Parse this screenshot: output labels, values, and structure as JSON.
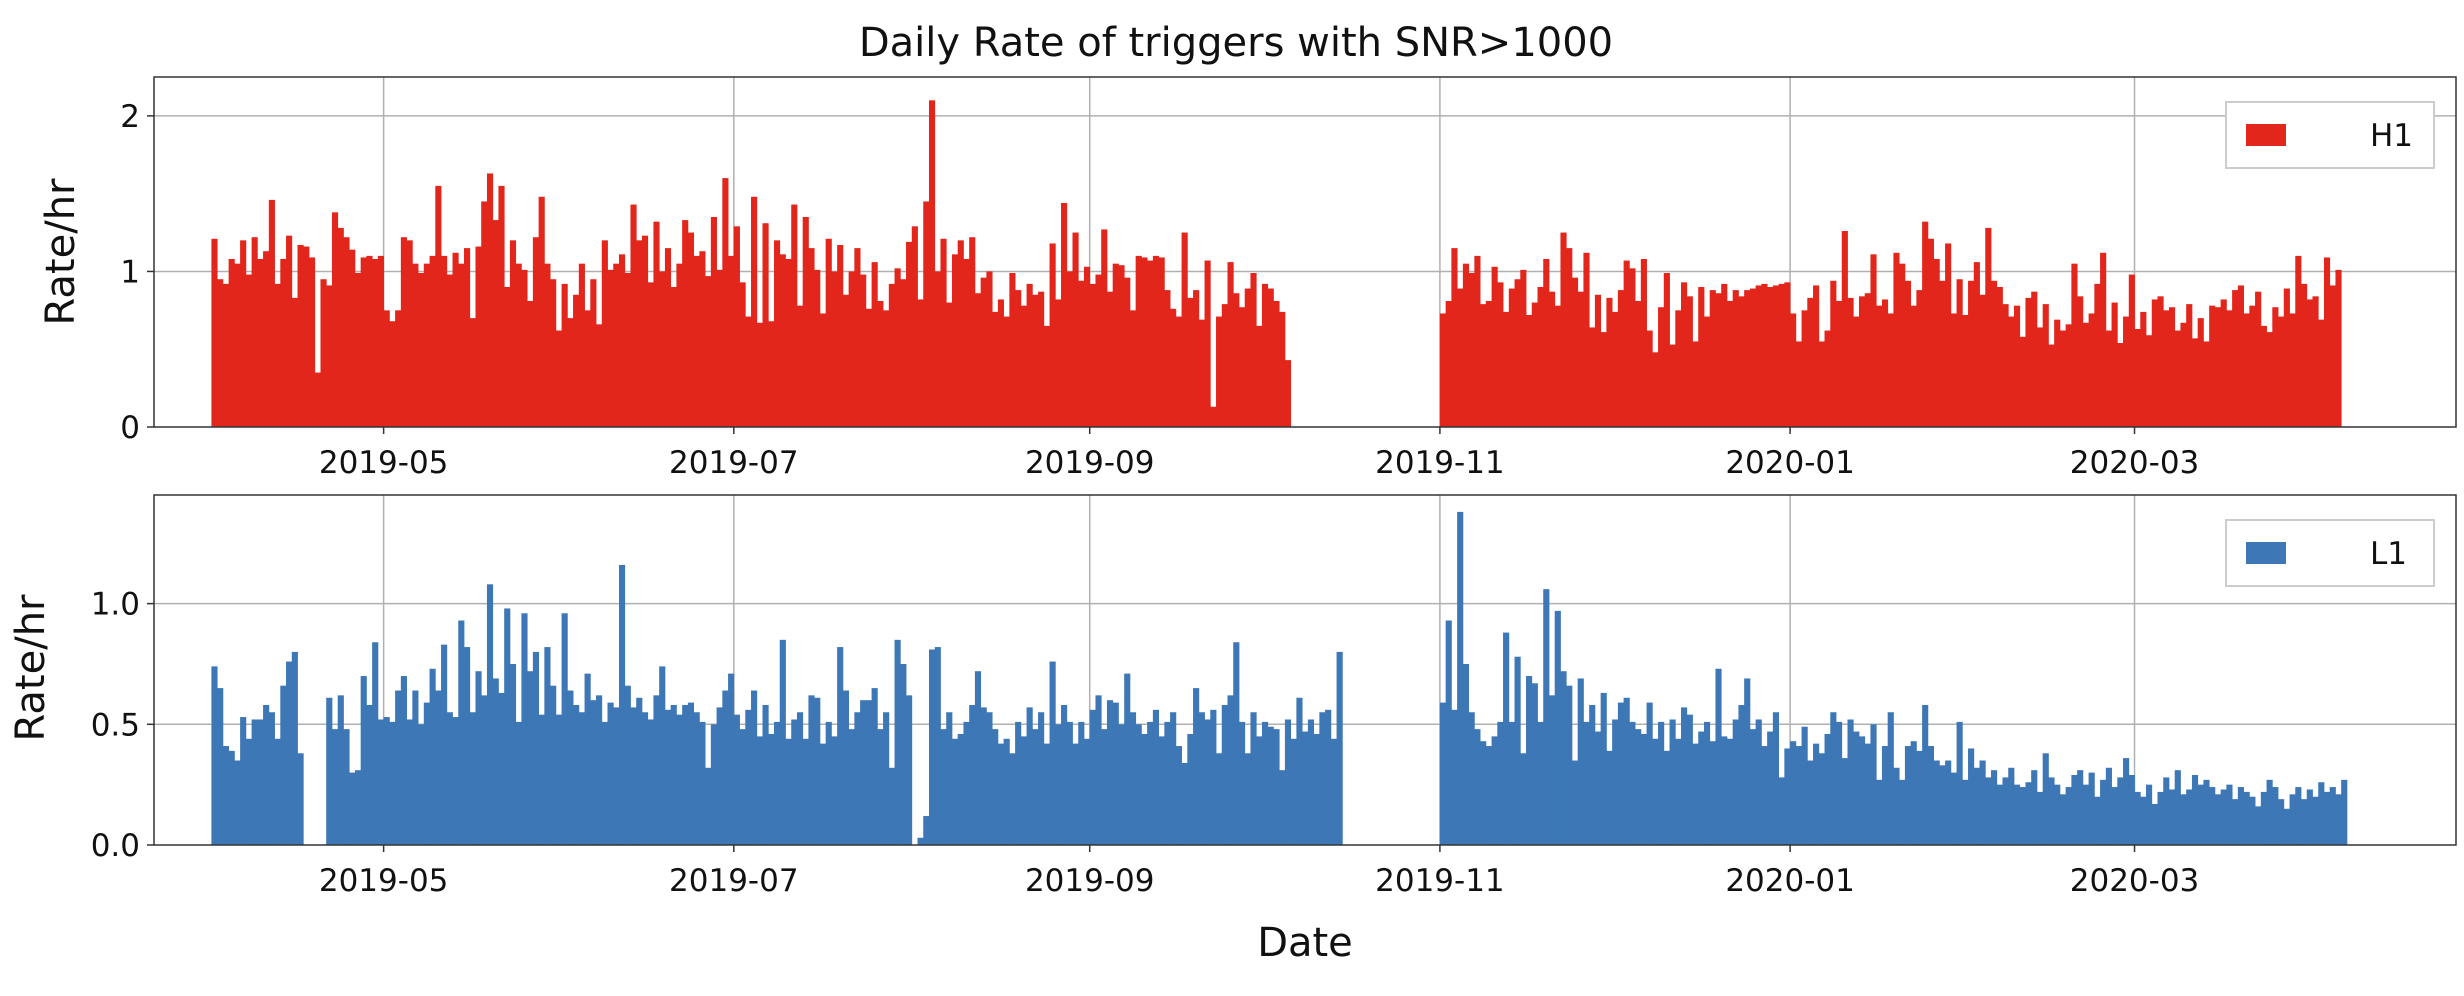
{
  "chart_data": {
    "type": "bar",
    "title": "Daily Rate of triggers with SNR>1000",
    "xlabel": "Date",
    "x_ticks": [
      "2019-05",
      "2019-07",
      "2019-09",
      "2019-11",
      "2020-01",
      "2020-03"
    ],
    "x_tick_dates": [
      "2019-05-01",
      "2019-07-01",
      "2019-09-01",
      "2019-11-01",
      "2020-01-01",
      "2020-03-01"
    ],
    "xlim": [
      "2019-03-22",
      "2020-04-26"
    ],
    "grid": true,
    "legend_position": "top-right",
    "panels": [
      {
        "ylabel": "Rate/hr",
        "ylim": [
          0,
          2.25
        ],
        "y_ticks": [
          "0",
          "1",
          "2"
        ],
        "y_tick_values": [
          0,
          1,
          2
        ],
        "series": [
          {
            "name": "H1",
            "color": "#e2261c",
            "segments": [
              {
                "start": "2019-04-01",
                "values": [
                  1.21,
                  0.95,
                  0.92,
                  1.08,
                  1.05,
                  1.2,
                  0.98,
                  1.22,
                  1.08,
                  1.13,
                  1.46,
                  0.92,
                  1.08,
                  1.23,
                  0.83,
                  1.17,
                  1.16,
                  1.09,
                  0.35,
                  0.95,
                  0.91,
                  1.38,
                  1.28,
                  1.22,
                  1.14,
                  0.99,
                  1.09,
                  1.1,
                  1.08,
                  1.1
                ]
              },
              {
                "start": "2019-05-01",
                "values": [
                  0.75,
                  0.68,
                  0.75,
                  1.22,
                  1.2,
                  1.05,
                  0.99,
                  1.05,
                  1.1,
                  1.55,
                  1.1,
                  0.98,
                  1.12,
                  1.05,
                  1.15,
                  0.7,
                  1.16,
                  1.45,
                  1.63,
                  1.33,
                  1.55,
                  0.9,
                  1.2,
                  1.05,
                  1.01,
                  0.81,
                  1.22,
                  1.48,
                  1.05,
                  0.95,
                  0.62,
                  0.92,
                  0.7,
                  0.85,
                  1.05,
                  0.75,
                  0.95,
                  0.66,
                  1.2,
                  1.01,
                  1.05,
                  1.11,
                  0.99,
                  1.43,
                  1.2,
                  1.23,
                  0.93,
                  1.32,
                  1.0,
                  1.15,
                  0.9,
                  1.05,
                  1.33,
                  1.25,
                  1.1,
                  1.13,
                  0.97,
                  1.35,
                  1.01,
                  1.6,
                  1.1,
                  1.29,
                  0.93,
                  0.71,
                  1.48,
                  0.67,
                  1.31,
                  0.68,
                  1.2,
                  1.11,
                  1.08,
                  1.43,
                  0.78,
                  1.35,
                  1.15,
                  1.01,
                  0.73,
                  1.21,
                  1.0,
                  1.17,
                  0.85,
                  1.0,
                  1.15,
                  0.98,
                  0.76,
                  1.06,
                  0.81,
                  0.75,
                  0.92,
                  1.02,
                  0.95,
                  1.19,
                  1.29,
                  0.82,
                  1.45,
                  2.1,
                  1.0,
                  1.21,
                  0.8,
                  1.11,
                  1.2,
                  1.08,
                  1.22,
                  0.86,
                  0.96,
                  1.0,
                  0.74,
                  0.82,
                  0.71,
                  0.99,
                  0.88,
                  0.78,
                  0.92,
                  0.85,
                  0.87,
                  0.65,
                  1.18,
                  0.82,
                  1.44,
                  1.0,
                  1.25,
                  0.94,
                  1.03,
                  0.92,
                  0.98,
                  1.27,
                  0.87,
                  1.05,
                  1.04,
                  0.96,
                  0.75,
                  1.1,
                  1.09,
                  1.07,
                  1.1,
                  1.09,
                  0.88,
                  0.76,
                  0.71,
                  1.25,
                  0.83,
                  0.88,
                  0.69,
                  1.07,
                  0.13,
                  0.71,
                  0.79,
                  1.06,
                  0.86,
                  0.77,
                  0.89,
                  0.99,
                  0.65,
                  0.92,
                  0.89,
                  0.81,
                  0.74,
                  0.43
                ]
              },
              {
                "start": "2019-11-01",
                "values": [
                  0.73,
                  0.81,
                  1.15,
                  0.89,
                  1.05,
                  0.99,
                  1.1,
                  0.79,
                  0.81,
                  1.03,
                  0.93,
                  0.74,
                  0.89,
                  0.95,
                  1.01,
                  0.72,
                  0.8,
                  0.9,
                  1.08,
                  0.87,
                  0.78,
                  1.25,
                  1.15,
                  0.96,
                  0.87,
                  1.12,
                  0.64,
                  0.85,
                  0.61,
                  0.83,
                  0.74,
                  0.88,
                  1.07,
                  1.02,
                  0.81,
                  1.08,
                  0.62,
                  0.48,
                  0.77,
                  0.99,
                  0.53,
                  0.75,
                  0.93,
                  0.84,
                  0.55,
                  0.9,
                  0.71,
                  0.88,
                  0.86,
                  0.92,
                  0.81,
                  0.88,
                  0.84,
                  0.88,
                  0.89,
                  0.91,
                  0.92,
                  0.9,
                  0.91,
                  0.92,
                  0.93,
                  0.73,
                  0.55,
                  0.75,
                  0.83,
                  0.91,
                  0.55,
                  0.62,
                  0.94,
                  0.81,
                  1.26,
                  0.83,
                  0.71,
                  0.84,
                  0.86,
                  1.11,
                  0.78,
                  0.82,
                  0.73,
                  1.12,
                  1.05,
                  0.94,
                  0.78,
                  0.88,
                  1.32,
                  1.21,
                  1.08,
                  0.94,
                  1.18,
                  0.73,
                  0.95,
                  0.72,
                  0.94,
                  1.06,
                  0.85,
                  1.28,
                  0.94,
                  0.9,
                  0.79,
                  0.71,
                  0.78,
                  0.58,
                  0.83,
                  0.87,
                  0.64,
                  0.79,
                  0.53,
                  0.69,
                  0.62,
                  0.66,
                  1.05,
                  0.84,
                  0.67,
                  0.73,
                  0.92,
                  1.12,
                  0.62,
                  0.8,
                  0.54,
                  0.71,
                  0.98,
                  0.63,
                  0.74,
                  0.59,
                  0.82,
                  0.84,
                  0.75,
                  0.77,
                  0.62,
                  0.67,
                  0.79,
                  0.57,
                  0.7,
                  0.55,
                  0.78,
                  0.77,
                  0.82,
                  0.75,
                  0.88,
                  0.91,
                  0.73,
                  0.78,
                  0.87,
                  0.65,
                  0.61,
                  0.77,
                  0.71,
                  0.89,
                  0.73,
                  1.1,
                  0.92,
                  0.82,
                  0.84,
                  0.69,
                  1.09,
                  0.91,
                  1.01
                ]
              }
            ]
          }
        ]
      },
      {
        "ylabel": "Rate/hr",
        "ylim": [
          0,
          1.45
        ],
        "y_ticks": [
          "0.0",
          "0.5",
          "1.0"
        ],
        "y_tick_values": [
          0,
          0.5,
          1.0
        ],
        "series": [
          {
            "name": "L1",
            "color": "#3d77b5",
            "segments": [
              {
                "start": "2019-04-01",
                "values": [
                  0.74,
                  0.65,
                  0.41,
                  0.39,
                  0.35,
                  0.53,
                  0.44,
                  0.52,
                  0.52,
                  0.58,
                  0.55,
                  0.44,
                  0.66,
                  0.76,
                  0.8,
                  0.38,
                  0.0,
                  0.0,
                  0.0,
                  0.0,
                  0.61,
                  0.48,
                  0.62,
                  0.48,
                  0.3,
                  0.31,
                  0.7,
                  0.58,
                  0.84,
                  0.52
                ]
              },
              {
                "start": "2019-05-01",
                "values": [
                  0.53,
                  0.51,
                  0.64,
                  0.7,
                  0.52,
                  0.64,
                  0.5,
                  0.59,
                  0.73,
                  0.64,
                  0.83,
                  0.55,
                  0.53,
                  0.93,
                  0.82,
                  0.55,
                  0.72,
                  0.62,
                  1.08,
                  0.69,
                  0.63,
                  0.98,
                  0.75,
                  0.51,
                  0.96,
                  0.72,
                  0.8,
                  0.54,
                  0.82,
                  0.66,
                  0.54,
                  0.96,
                  0.64,
                  0.58,
                  0.55,
                  0.71,
                  0.6,
                  0.62,
                  0.51,
                  0.59,
                  0.57,
                  1.16,
                  0.66,
                  0.57,
                  0.61,
                  0.55,
                  0.52,
                  0.62,
                  0.74,
                  0.56,
                  0.58,
                  0.54,
                  0.58,
                  0.59,
                  0.55,
                  0.51,
                  0.32,
                  0.5,
                  0.57,
                  0.64,
                  0.71,
                  0.54,
                  0.48,
                  0.56,
                  0.64,
                  0.45,
                  0.58,
                  0.46,
                  0.51,
                  0.85,
                  0.44,
                  0.52,
                  0.55,
                  0.44,
                  0.62,
                  0.61,
                  0.42,
                  0.51,
                  0.45,
                  0.82,
                  0.64,
                  0.48,
                  0.55,
                  0.6,
                  0.6,
                  0.65,
                  0.48,
                  0.55,
                  0.32,
                  0.85,
                  0.75,
                  0.62,
                  0.0,
                  0.03,
                  0.12,
                  0.81,
                  0.82,
                  0.48,
                  0.55,
                  0.44,
                  0.46,
                  0.51,
                  0.58,
                  0.72,
                  0.57,
                  0.55,
                  0.48,
                  0.42,
                  0.44,
                  0.38,
                  0.51,
                  0.45,
                  0.57,
                  0.48,
                  0.55,
                  0.42,
                  0.76,
                  0.5,
                  0.58,
                  0.51,
                  0.42,
                  0.51,
                  0.44,
                  0.56,
                  0.62,
                  0.48,
                  0.6,
                  0.59,
                  0.5,
                  0.71,
                  0.55,
                  0.5,
                  0.46,
                  0.51,
                  0.56,
                  0.45,
                  0.51,
                  0.55,
                  0.41,
                  0.34,
                  0.46,
                  0.65,
                  0.55,
                  0.52,
                  0.56,
                  0.38,
                  0.58,
                  0.62,
                  0.84,
                  0.51,
                  0.38,
                  0.55,
                  0.45,
                  0.51,
                  0.49,
                  0.48,
                  0.31,
                  0.52,
                  0.44,
                  0.61,
                  0.47,
                  0.52,
                  0.46,
                  0.55,
                  0.56,
                  0.44,
                  0.8
                ]
              },
              {
                "start": "2019-11-01",
                "values": [
                  0.59,
                  0.93,
                  0.56,
                  1.38,
                  0.75,
                  0.55,
                  0.48,
                  0.43,
                  0.41,
                  0.45,
                  0.51,
                  0.88,
                  0.51,
                  0.78,
                  0.38,
                  0.7,
                  0.67,
                  0.51,
                  1.06,
                  0.62,
                  0.97,
                  0.72,
                  0.66,
                  0.35,
                  0.69,
                  0.51,
                  0.58,
                  0.47,
                  0.63,
                  0.39,
                  0.52,
                  0.59,
                  0.61,
                  0.51,
                  0.48,
                  0.46,
                  0.59,
                  0.44,
                  0.51,
                  0.39,
                  0.52,
                  0.44,
                  0.57,
                  0.54,
                  0.42,
                  0.47,
                  0.51,
                  0.43,
                  0.73,
                  0.45,
                  0.44,
                  0.52,
                  0.58,
                  0.69,
                  0.48,
                  0.52,
                  0.41,
                  0.47,
                  0.55,
                  0.28,
                  0.4,
                  0.43,
                  0.41,
                  0.49,
                  0.35,
                  0.42,
                  0.38,
                  0.46,
                  0.55,
                  0.51,
                  0.36,
                  0.52,
                  0.47,
                  0.45,
                  0.42,
                  0.5,
                  0.27,
                  0.41,
                  0.55,
                  0.32,
                  0.27,
                  0.41,
                  0.43,
                  0.39,
                  0.58,
                  0.41,
                  0.35,
                  0.33,
                  0.35,
                  0.3,
                  0.51,
                  0.27,
                  0.4,
                  0.32,
                  0.35,
                  0.28,
                  0.31,
                  0.25,
                  0.28,
                  0.32,
                  0.25,
                  0.24,
                  0.26,
                  0.31,
                  0.22,
                  0.38,
                  0.28,
                  0.25,
                  0.21,
                  0.24,
                  0.29,
                  0.31,
                  0.25,
                  0.3,
                  0.2,
                  0.27,
                  0.32,
                  0.24,
                  0.28,
                  0.36,
                  0.29,
                  0.22,
                  0.2,
                  0.25,
                  0.17,
                  0.22,
                  0.28,
                  0.23,
                  0.31,
                  0.21,
                  0.23,
                  0.29,
                  0.25,
                  0.27,
                  0.24,
                  0.21,
                  0.23,
                  0.25,
                  0.19,
                  0.24,
                  0.22,
                  0.2,
                  0.16,
                  0.22,
                  0.27,
                  0.24,
                  0.19,
                  0.15,
                  0.21,
                  0.24,
                  0.19,
                  0.23,
                  0.2,
                  0.26,
                  0.22,
                  0.24,
                  0.21,
                  0.27
                ]
              }
            ]
          }
        ]
      }
    ]
  }
}
